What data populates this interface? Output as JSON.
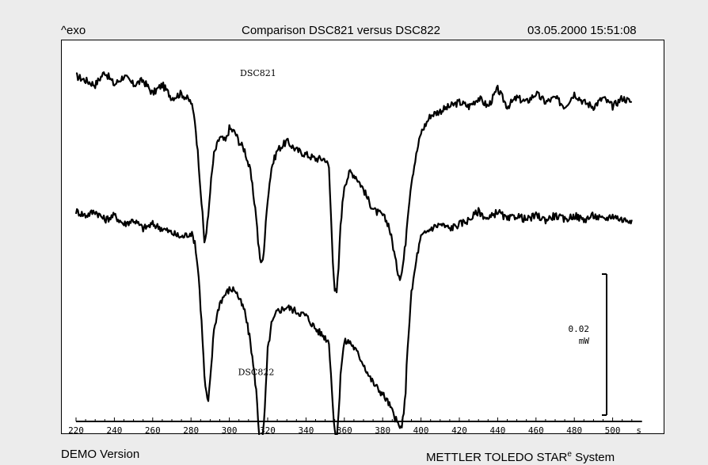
{
  "header": {
    "left": "^exo",
    "title": "Comparison DSC821 versus DSC822",
    "timestamp": "03.05.2000 15:51:08"
  },
  "footer": {
    "left": "DEMO Version",
    "right_main": "METTLER  TOLEDO  STAR",
    "right_sup": "e",
    "right_tail": " System"
  },
  "scale_bar": {
    "value": "0.02",
    "unit": "mW",
    "span_mW": 0.02
  },
  "chart_data": {
    "type": "line",
    "title": "Comparison DSC821 versus DSC822",
    "xlabel": "s",
    "xlim": [
      220,
      512
    ],
    "x_ticks": [
      220,
      240,
      260,
      280,
      300,
      320,
      340,
      360,
      380,
      400,
      420,
      440,
      460,
      480,
      500
    ],
    "x_unit_label": "s",
    "ylabel": "",
    "ylim": [
      -0.045,
      0.008
    ],
    "grid": false,
    "series": [
      {
        "name": "DSC821",
        "x": [
          220,
          225,
          230,
          235,
          240,
          245,
          250,
          255,
          260,
          265,
          270,
          275,
          280,
          282,
          284,
          286,
          287,
          288,
          289,
          290,
          292,
          295,
          298,
          300,
          303,
          305,
          308,
          311,
          314,
          315,
          316,
          317,
          318,
          319,
          320,
          322,
          325,
          330,
          335,
          340,
          345,
          350,
          352,
          353,
          354,
          355,
          356,
          357,
          358,
          360,
          363,
          366,
          370,
          373,
          376,
          380,
          383,
          385,
          387,
          388,
          389,
          390,
          391,
          392,
          393,
          395,
          398,
          400,
          405,
          410,
          415,
          420,
          425,
          430,
          435,
          440,
          445,
          450,
          455,
          460,
          465,
          470,
          475,
          480,
          485,
          490,
          495,
          500,
          505,
          510
        ],
        "y": [
          0.0,
          -0.0005,
          -0.001,
          0.0005,
          -0.001,
          0.0,
          -0.001,
          -0.0005,
          -0.002,
          -0.001,
          -0.0025,
          -0.002,
          -0.003,
          -0.005,
          -0.01,
          -0.016,
          -0.019,
          -0.018,
          -0.016,
          -0.013,
          -0.009,
          -0.007,
          -0.0075,
          -0.006,
          -0.0065,
          -0.0075,
          -0.0085,
          -0.011,
          -0.016,
          -0.019,
          -0.021,
          -0.0215,
          -0.02,
          -0.017,
          -0.014,
          -0.0105,
          -0.0085,
          -0.0075,
          -0.0085,
          -0.009,
          -0.0095,
          -0.0095,
          -0.0105,
          -0.016,
          -0.021,
          -0.0245,
          -0.025,
          -0.022,
          -0.017,
          -0.0125,
          -0.011,
          -0.0115,
          -0.013,
          -0.0145,
          -0.0155,
          -0.016,
          -0.017,
          -0.019,
          -0.0215,
          -0.0225,
          -0.023,
          -0.0225,
          -0.021,
          -0.019,
          -0.016,
          -0.012,
          -0.0085,
          -0.0065,
          -0.0045,
          -0.004,
          -0.0035,
          -0.003,
          -0.0035,
          -0.0025,
          -0.0035,
          -0.0015,
          -0.0035,
          -0.0025,
          -0.003,
          -0.002,
          -0.003,
          -0.0025,
          -0.0035,
          -0.002,
          -0.003,
          -0.0035,
          -0.0025,
          -0.0035,
          -0.0025,
          -0.003
        ]
      },
      {
        "name": "DSC822",
        "x": [
          220,
          225,
          230,
          235,
          240,
          245,
          250,
          255,
          260,
          265,
          270,
          275,
          280,
          282,
          284,
          286,
          287,
          288,
          289,
          290,
          292,
          295,
          298,
          300,
          303,
          305,
          308,
          311,
          314,
          315,
          316,
          317,
          318,
          319,
          320,
          322,
          325,
          330,
          335,
          340,
          345,
          350,
          352,
          353,
          354,
          355,
          356,
          357,
          358,
          360,
          363,
          366,
          370,
          373,
          376,
          380,
          383,
          385,
          387,
          388,
          389,
          390,
          391,
          392,
          393,
          395,
          398,
          400,
          405,
          410,
          415,
          420,
          425,
          430,
          435,
          440,
          445,
          450,
          455,
          460,
          465,
          470,
          475,
          480,
          485,
          490,
          495,
          500,
          505,
          510
        ],
        "y": [
          -0.0155,
          -0.016,
          -0.0155,
          -0.0165,
          -0.016,
          -0.017,
          -0.0165,
          -0.0175,
          -0.017,
          -0.0175,
          -0.018,
          -0.0185,
          -0.018,
          -0.019,
          -0.023,
          -0.03,
          -0.0345,
          -0.0365,
          -0.0375,
          -0.035,
          -0.029,
          -0.026,
          -0.025,
          -0.0245,
          -0.0245,
          -0.0255,
          -0.027,
          -0.0305,
          -0.036,
          -0.0395,
          -0.042,
          -0.0425,
          -0.04,
          -0.036,
          -0.0315,
          -0.0285,
          -0.027,
          -0.0265,
          -0.027,
          -0.0275,
          -0.029,
          -0.03,
          -0.0305,
          -0.034,
          -0.038,
          -0.041,
          -0.0415,
          -0.039,
          -0.034,
          -0.0305,
          -0.0305,
          -0.0315,
          -0.033,
          -0.0345,
          -0.0355,
          -0.0365,
          -0.0375,
          -0.0385,
          -0.0395,
          -0.04,
          -0.0405,
          -0.04,
          -0.039,
          -0.036,
          -0.031,
          -0.025,
          -0.0205,
          -0.0185,
          -0.0175,
          -0.017,
          -0.0175,
          -0.017,
          -0.0165,
          -0.0155,
          -0.0165,
          -0.0155,
          -0.0165,
          -0.016,
          -0.0165,
          -0.016,
          -0.0165,
          -0.016,
          -0.0165,
          -0.016,
          -0.0165,
          -0.016,
          -0.0165,
          -0.016,
          -0.0165,
          -0.0165
        ]
      }
    ],
    "annotations": [
      {
        "text": "DSC821",
        "x": 315,
        "y": 0.0
      },
      {
        "text": "DSC822",
        "x": 314,
        "y": -0.0343
      }
    ]
  },
  "colors": {
    "line": "#000000",
    "page_bg": "#ececec",
    "plot_bg": "#ffffff"
  }
}
